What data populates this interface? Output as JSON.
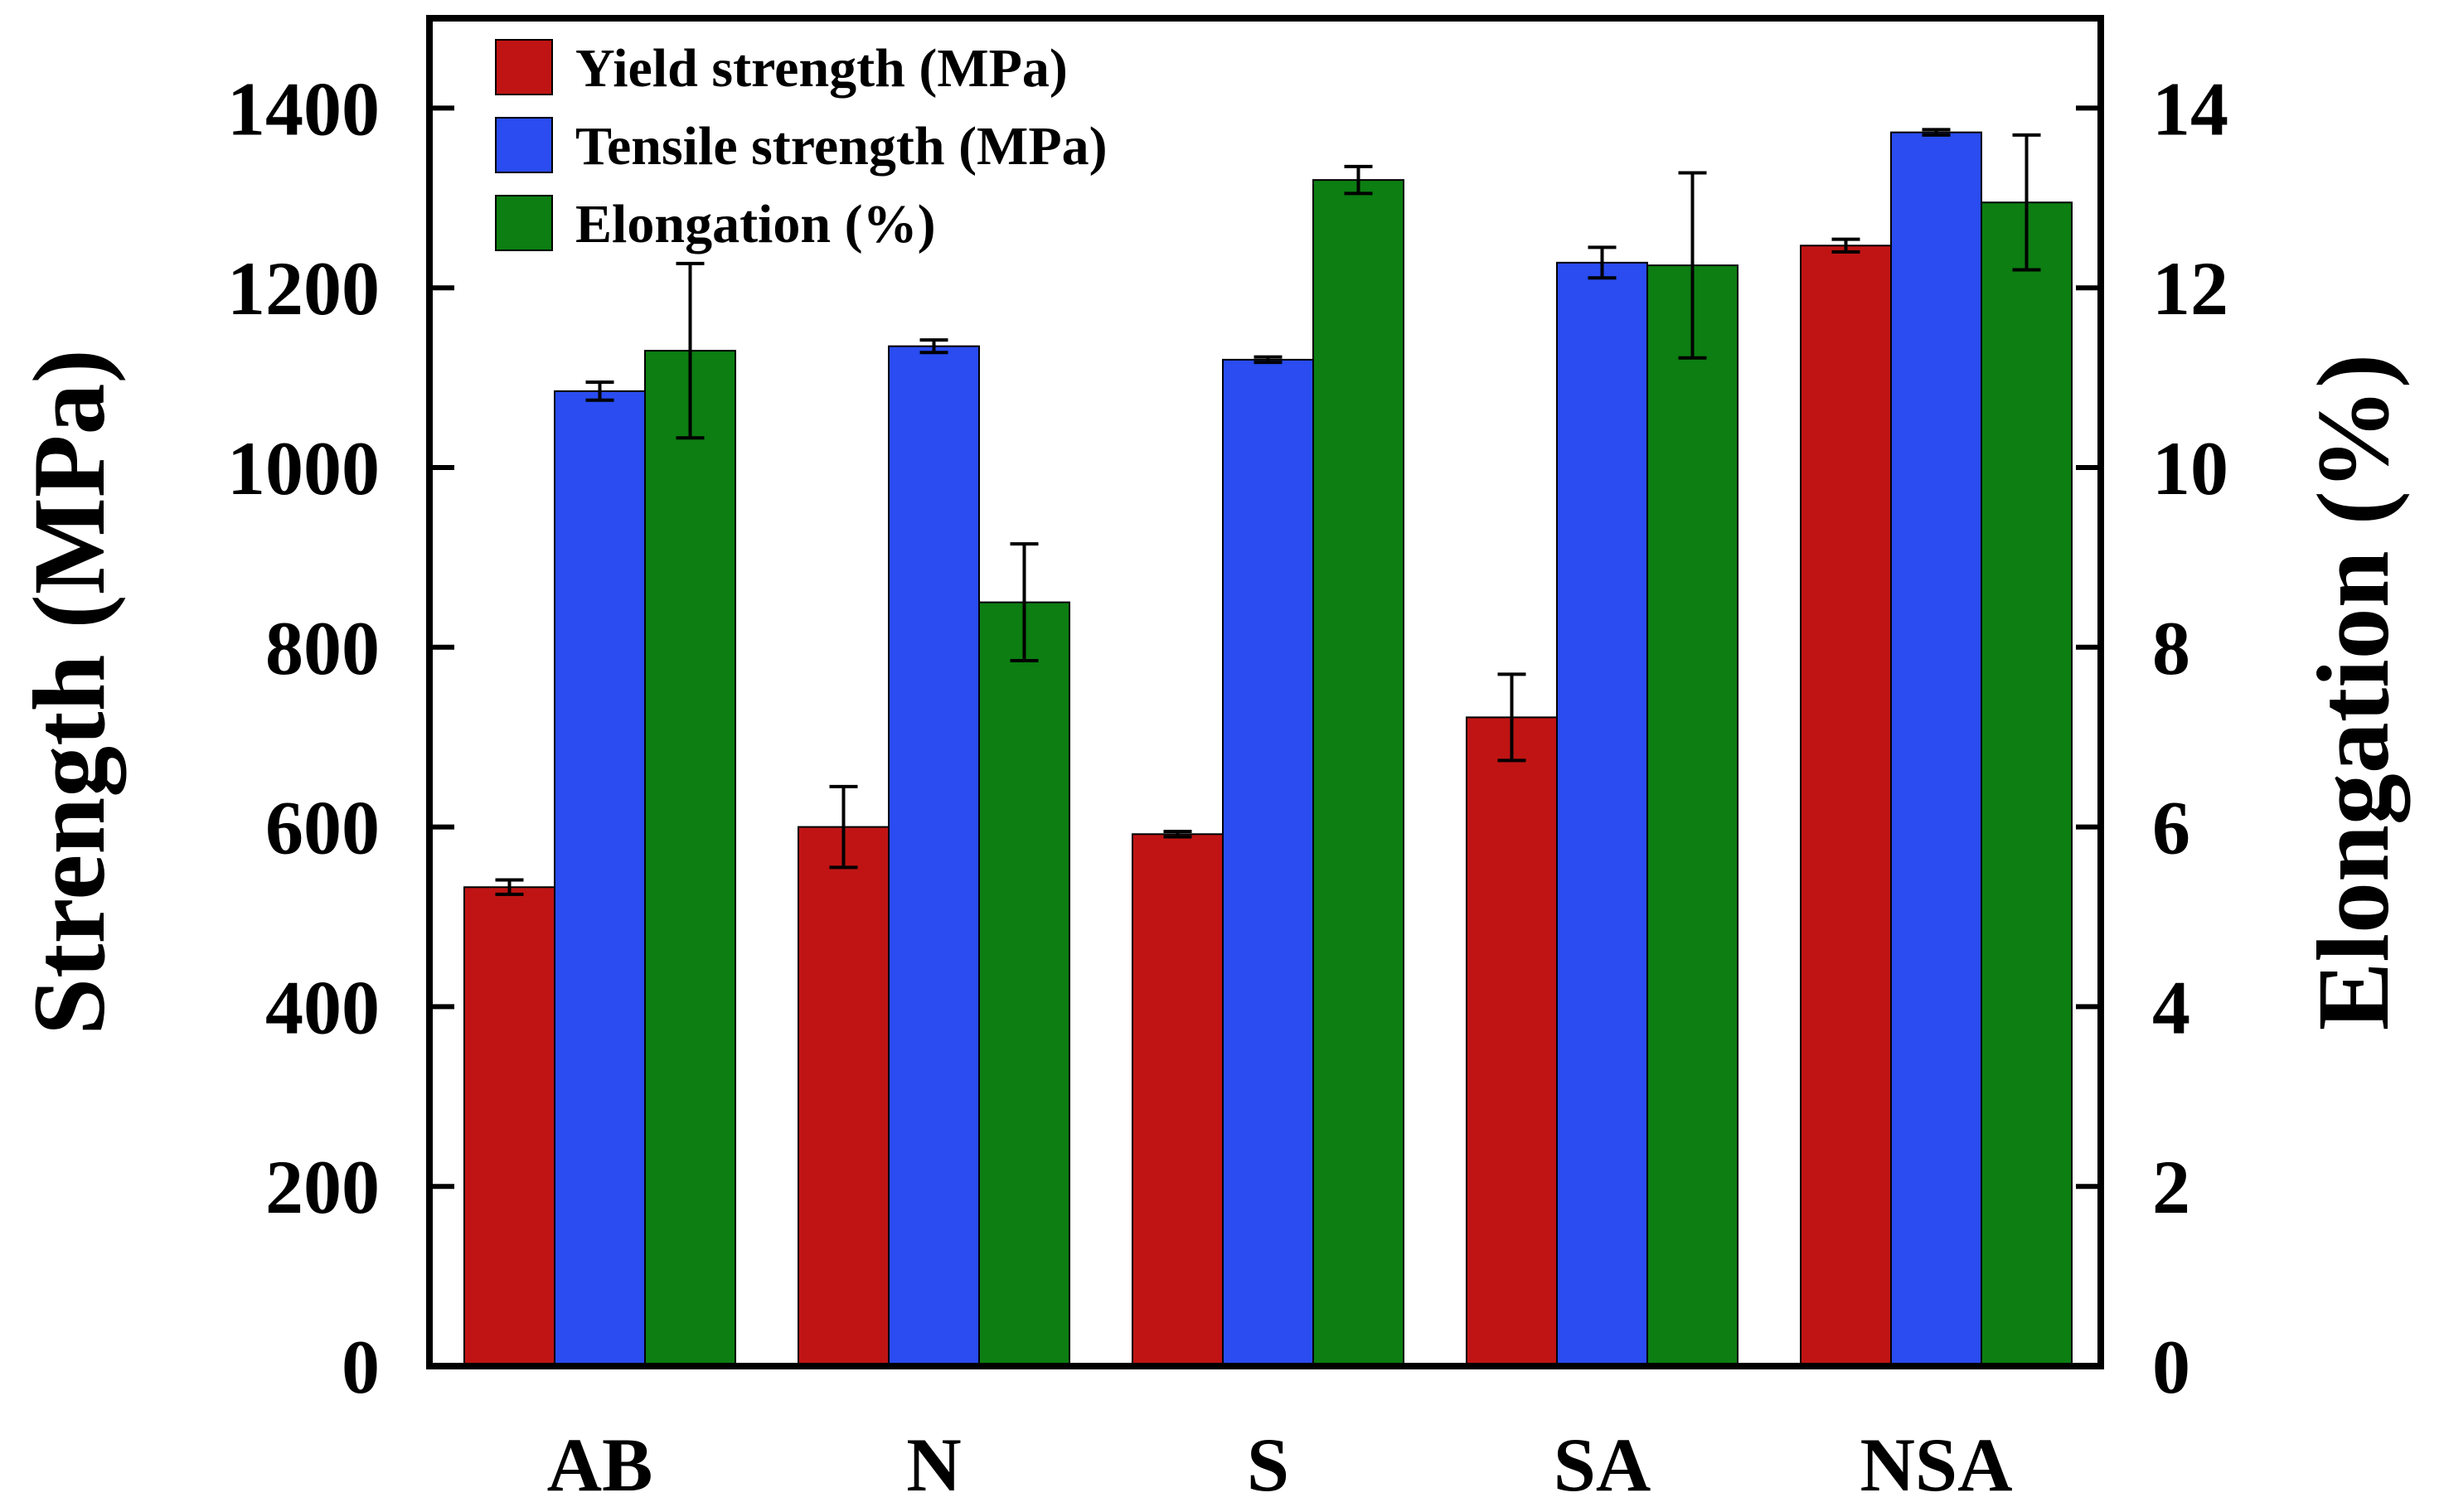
{
  "chart_data": {
    "type": "bar",
    "categories": [
      "AB",
      "N",
      "S",
      "SA",
      "NSA"
    ],
    "series": [
      {
        "name": "Yield strength (MPa)",
        "axis": "left",
        "color": "#c01414",
        "values": [
          533,
          600,
          592,
          722,
          1247
        ],
        "errors": [
          8,
          45,
          3,
          48,
          7
        ]
      },
      {
        "name": "Tensile strength (MPa)",
        "axis": "left",
        "color": "#2a4cf0",
        "values": [
          1085,
          1135,
          1120,
          1228,
          1373
        ],
        "errors": [
          10,
          7,
          3,
          17,
          3
        ]
      },
      {
        "name": "Elongation (%)",
        "axis": "right",
        "color": "#0c7e12",
        "values": [
          11.3,
          8.5,
          13.2,
          12.25,
          12.95
        ],
        "errors": [
          0.97,
          0.65,
          0.15,
          1.03,
          0.75
        ]
      }
    ],
    "left_axis": {
      "label": "Strength (MPa)",
      "range": [
        0,
        1500
      ],
      "ticks": [
        0,
        200,
        400,
        600,
        800,
        1000,
        1200,
        1400
      ]
    },
    "right_axis": {
      "label": "Elongation (%)",
      "range": [
        0,
        15
      ],
      "ticks": [
        0,
        2,
        4,
        6,
        8,
        10,
        12,
        14
      ]
    },
    "legend": {
      "position": "top-left"
    },
    "grid": false
  }
}
